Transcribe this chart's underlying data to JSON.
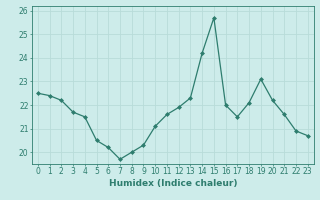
{
  "x": [
    0,
    1,
    2,
    3,
    4,
    5,
    6,
    7,
    8,
    9,
    10,
    11,
    12,
    13,
    14,
    15,
    16,
    17,
    18,
    19,
    20,
    21,
    22,
    23
  ],
  "y": [
    22.5,
    22.4,
    22.2,
    21.7,
    21.5,
    20.5,
    20.2,
    19.7,
    20.0,
    20.3,
    21.1,
    21.6,
    21.9,
    22.3,
    24.2,
    25.7,
    22.0,
    21.5,
    22.1,
    23.1,
    22.2,
    21.6,
    20.9,
    20.7
  ],
  "line_color": "#2e7d6e",
  "marker": "D",
  "marker_size": 2.0,
  "bg_color": "#cdecea",
  "grid_color": "#b8dcd9",
  "axis_color": "#2e7d6e",
  "xlabel": "Humidex (Indice chaleur)",
  "xlim": [
    -0.5,
    23.5
  ],
  "ylim": [
    19.5,
    26.2
  ],
  "yticks": [
    20,
    21,
    22,
    23,
    24,
    25,
    26
  ],
  "xticks": [
    0,
    1,
    2,
    3,
    4,
    5,
    6,
    7,
    8,
    9,
    10,
    11,
    12,
    13,
    14,
    15,
    16,
    17,
    18,
    19,
    20,
    21,
    22,
    23
  ],
  "label_fontsize": 6.5,
  "tick_fontsize": 5.5
}
